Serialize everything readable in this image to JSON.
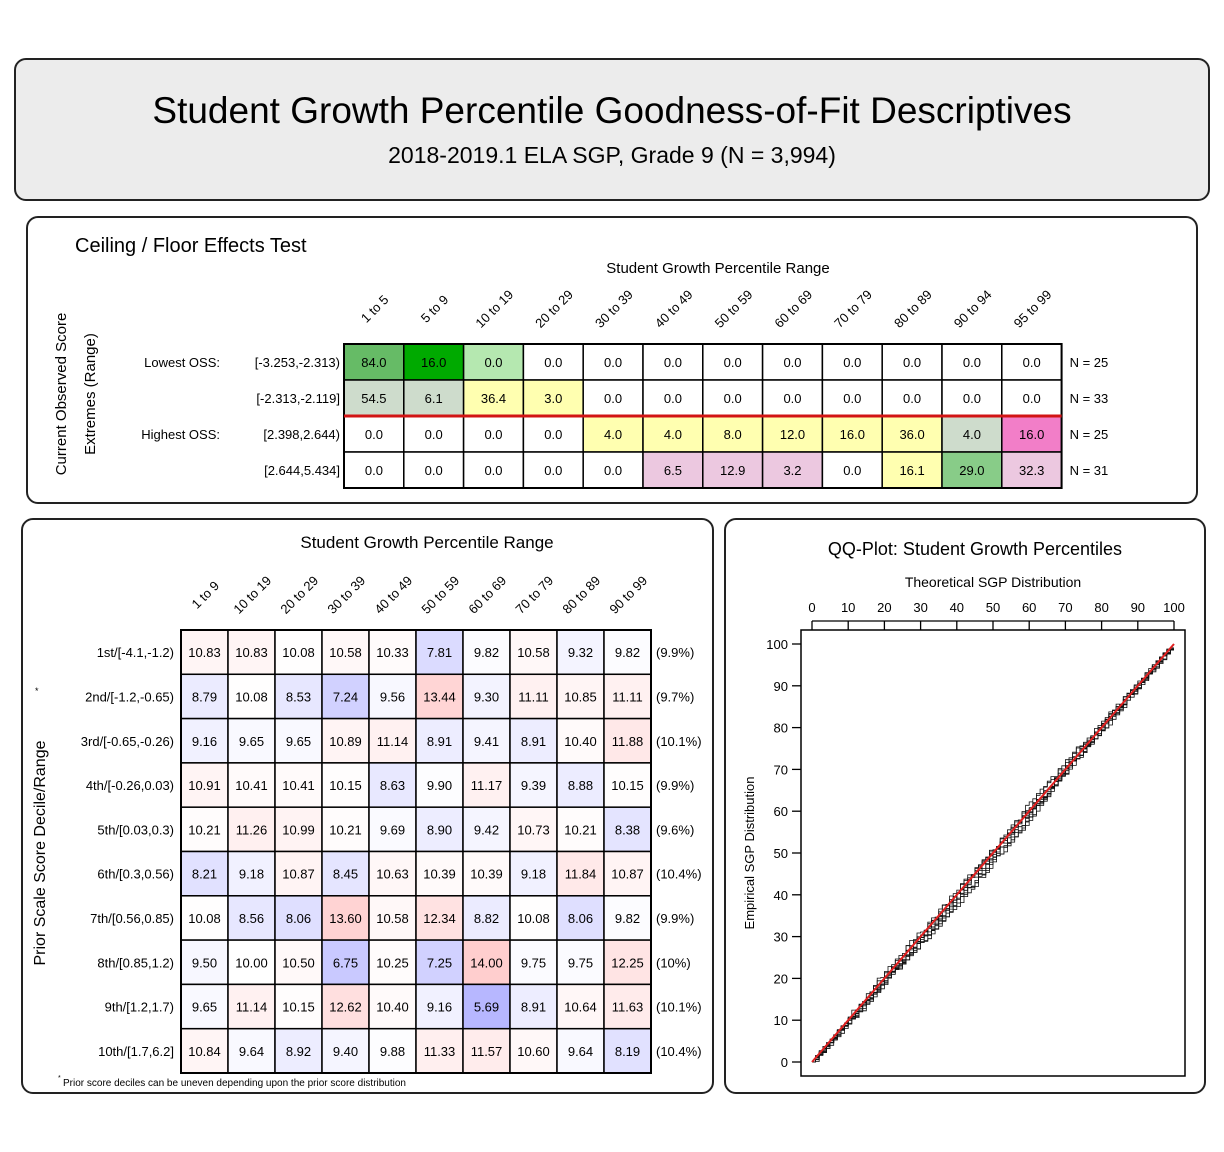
{
  "header": {
    "title": "Student Growth Percentile Goodness-of-Fit Descriptives",
    "subtitle": "2018-2019.1 ELA SGP, Grade 9 (N = 3,994)"
  },
  "chart_data": [
    {
      "type": "table",
      "title": "Ceiling / Floor Effects Test",
      "column_title": "Student Growth Percentile Range",
      "ylabel_line1": "Current Observed Score",
      "ylabel_line2": "Extremes (Range)",
      "columns": [
        "1 to 5",
        "5 to 9",
        "10 to 19",
        "20 to 29",
        "30 to 39",
        "40 to 49",
        "50 to 59",
        "60 to 69",
        "70 to 79",
        "80 to 89",
        "90 to 94",
        "95 to 99"
      ],
      "rows": [
        {
          "group": "Lowest OSS:",
          "range": "[-3.253,-2.313)",
          "n": "N = 25",
          "values": [
            "84.0",
            "16.0",
            "0.0",
            "0.0",
            "0.0",
            "0.0",
            "0.0",
            "0.0",
            "0.0",
            "0.0",
            "0.0",
            "0.0"
          ],
          "colors": [
            "#66bb66",
            "#00aa00",
            "#b5e8b0",
            "#ffffff",
            "#ffffff",
            "#ffffff",
            "#ffffff",
            "#ffffff",
            "#ffffff",
            "#ffffff",
            "#ffffff",
            "#ffffff"
          ]
        },
        {
          "group": "",
          "range": "[-2.313,-2.119]",
          "n": "N = 33",
          "values": [
            "54.5",
            "6.1",
            "36.4",
            "3.0",
            "0.0",
            "0.0",
            "0.0",
            "0.0",
            "0.0",
            "0.0",
            "0.0",
            "0.0"
          ],
          "colors": [
            "#cedccc",
            "#cedccc",
            "#ffffb0",
            "#ffffb0",
            "#ffffff",
            "#ffffff",
            "#ffffff",
            "#ffffff",
            "#ffffff",
            "#ffffff",
            "#ffffff",
            "#ffffff"
          ]
        },
        {
          "group": "Highest OSS:",
          "range": "[2.398,2.644)",
          "n": "N = 25",
          "values": [
            "0.0",
            "0.0",
            "0.0",
            "0.0",
            "4.0",
            "4.0",
            "8.0",
            "12.0",
            "16.0",
            "36.0",
            "4.0",
            "16.0"
          ],
          "colors": [
            "#ffffff",
            "#ffffff",
            "#ffffff",
            "#ffffff",
            "#ffffb0",
            "#ffffb0",
            "#ffffb0",
            "#ffffb0",
            "#ffffb0",
            "#ffffb0",
            "#cedccc",
            "#f27ec8"
          ]
        },
        {
          "group": "",
          "range": "[2.644,5.434]",
          "n": "N = 31",
          "values": [
            "0.0",
            "0.0",
            "0.0",
            "0.0",
            "0.0",
            "6.5",
            "12.9",
            "3.2",
            "0.0",
            "16.1",
            "29.0",
            "32.3"
          ],
          "colors": [
            "#ffffff",
            "#ffffff",
            "#ffffff",
            "#ffffff",
            "#ffffff",
            "#ecc8e0",
            "#ecc8e0",
            "#ecc8e0",
            "#ffffff",
            "#ffffb0",
            "#88cc88",
            "#ecc8e0"
          ]
        }
      ]
    },
    {
      "type": "heatmap",
      "title": "Student Growth Percentile Range",
      "ylabel": "Prior Scale Score Decile/Range",
      "footnote_mark": "*",
      "footnote": "Prior score deciles can be uneven depending upon the prior score distribution",
      "columns": [
        "1 to 9",
        "10 to 19",
        "20 to 29",
        "30 to 39",
        "40 to 49",
        "50 to 59",
        "60 to 69",
        "70 to 79",
        "80 to 89",
        "90 to 99"
      ],
      "rows": [
        {
          "label": "1st/[-4.1,-1.2)",
          "pct": "(9.9%)",
          "values": [
            10.83,
            10.83,
            10.08,
            10.58,
            10.33,
            7.81,
            9.82,
            10.58,
            9.32,
            9.82
          ]
        },
        {
          "label": "2nd/[-1.2,-0.65)",
          "pct": "(9.7%)",
          "values": [
            8.79,
            10.08,
            8.53,
            7.24,
            9.56,
            13.44,
            9.3,
            11.11,
            10.85,
            11.11
          ]
        },
        {
          "label": "3rd/[-0.65,-0.26)",
          "pct": "(10.1%)",
          "values": [
            9.16,
            9.65,
            9.65,
            10.89,
            11.14,
            8.91,
            9.41,
            8.91,
            10.4,
            11.88
          ]
        },
        {
          "label": "4th/[-0.26,0.03)",
          "pct": "(9.9%)",
          "values": [
            10.91,
            10.41,
            10.41,
            10.15,
            8.63,
            9.9,
            11.17,
            9.39,
            8.88,
            10.15
          ]
        },
        {
          "label": "5th/[0.03,0.3)",
          "pct": "(9.6%)",
          "values": [
            10.21,
            11.26,
            10.99,
            10.21,
            9.69,
            8.9,
            9.42,
            10.73,
            10.21,
            8.38
          ]
        },
        {
          "label": "6th/[0.3,0.56)",
          "pct": "(10.4%)",
          "values": [
            8.21,
            9.18,
            10.87,
            8.45,
            10.63,
            10.39,
            10.39,
            9.18,
            11.84,
            10.87
          ]
        },
        {
          "label": "7th/[0.56,0.85)",
          "pct": "(9.9%)",
          "values": [
            10.08,
            8.56,
            8.06,
            13.6,
            10.58,
            12.34,
            8.82,
            10.08,
            8.06,
            9.82
          ]
        },
        {
          "label": "8th/[0.85,1.2)",
          "pct": "(10%)",
          "values": [
            9.5,
            10.0,
            10.5,
            6.75,
            10.25,
            7.25,
            14.0,
            9.75,
            9.75,
            12.25
          ]
        },
        {
          "label": "9th/[1.2,1.7)",
          "pct": "(10.1%)",
          "values": [
            9.65,
            11.14,
            10.15,
            12.62,
            10.4,
            9.16,
            5.69,
            8.91,
            10.64,
            11.63
          ]
        },
        {
          "label": "10th/[1.7,6.2]",
          "pct": "(10.4%)",
          "values": [
            10.84,
            9.64,
            8.92,
            9.4,
            9.88,
            11.33,
            11.57,
            10.6,
            9.64,
            8.19
          ]
        }
      ]
    },
    {
      "type": "line",
      "title": "QQ-Plot: Student Growth Percentiles",
      "xlabel": "Theoretical SGP Distribution",
      "ylabel": "Empirical SGP Distribution",
      "xlim": [
        0,
        100
      ],
      "ylim": [
        0,
        100
      ],
      "xticks": [
        0,
        10,
        20,
        30,
        40,
        50,
        60,
        70,
        80,
        90,
        100
      ],
      "yticks": [
        0,
        10,
        20,
        30,
        40,
        50,
        60,
        70,
        80,
        90,
        100
      ],
      "x_axis_position": "top",
      "reference_line": {
        "x": [
          0,
          100
        ],
        "y": [
          0,
          100
        ],
        "color": "#e02020"
      },
      "empirical_line_count": 10
    }
  ]
}
